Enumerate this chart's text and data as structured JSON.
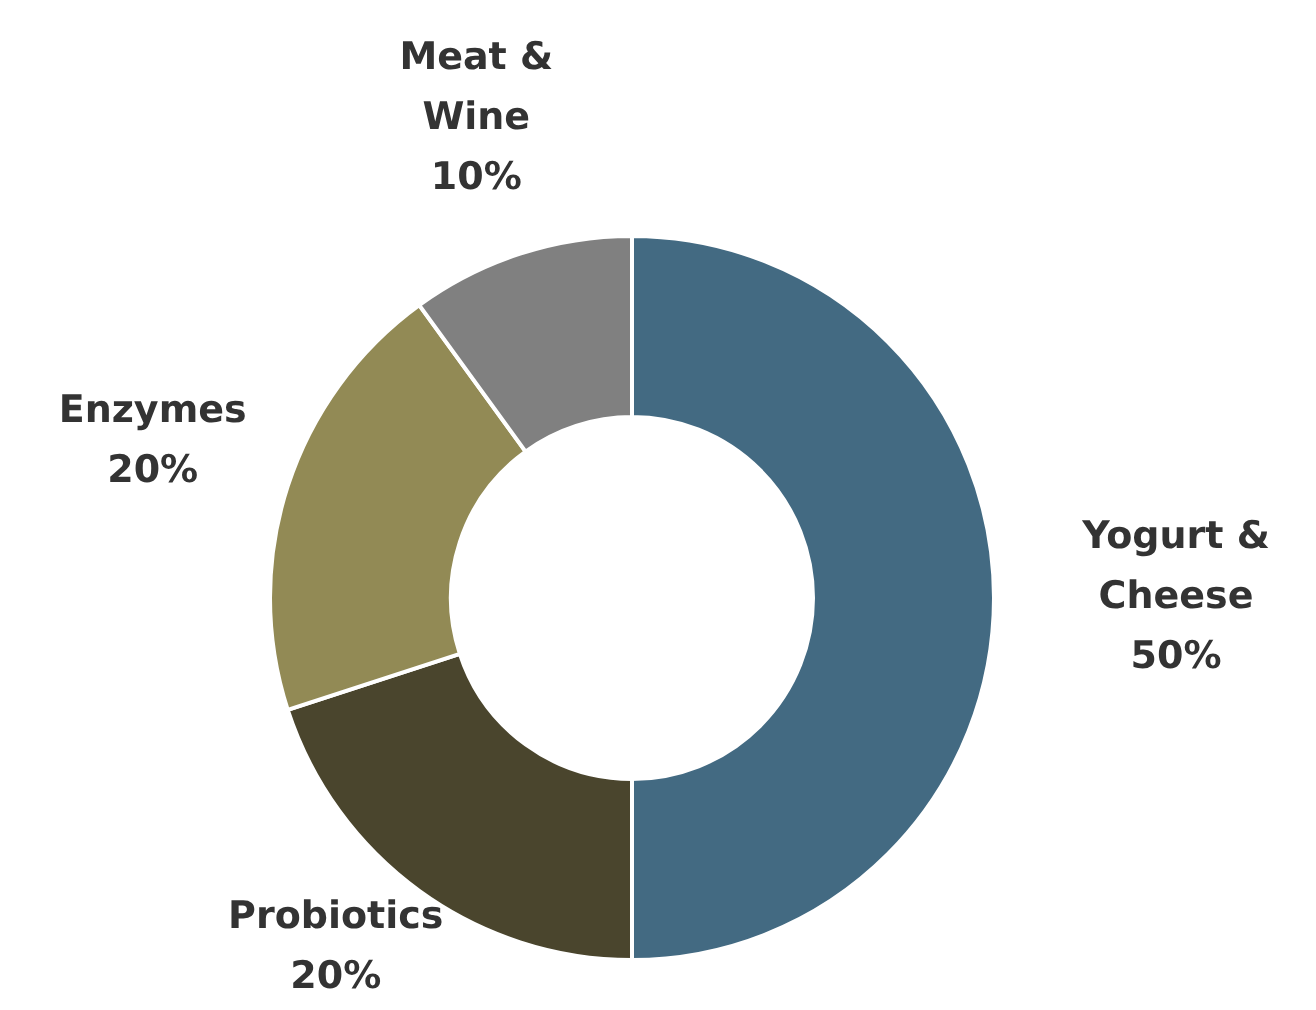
{
  "chart_data": {
    "type": "donut",
    "categories": [
      "Yogurt & Cheese",
      "Probiotics",
      "Enzymes",
      "Meat & Wine"
    ],
    "values": [
      50,
      20,
      20,
      10
    ],
    "value_labels": [
      "50%",
      "20%",
      "20%",
      "10%"
    ],
    "colors": [
      "#436a82",
      "#4a452d",
      "#928a55",
      "#808080"
    ],
    "legend": false
  }
}
